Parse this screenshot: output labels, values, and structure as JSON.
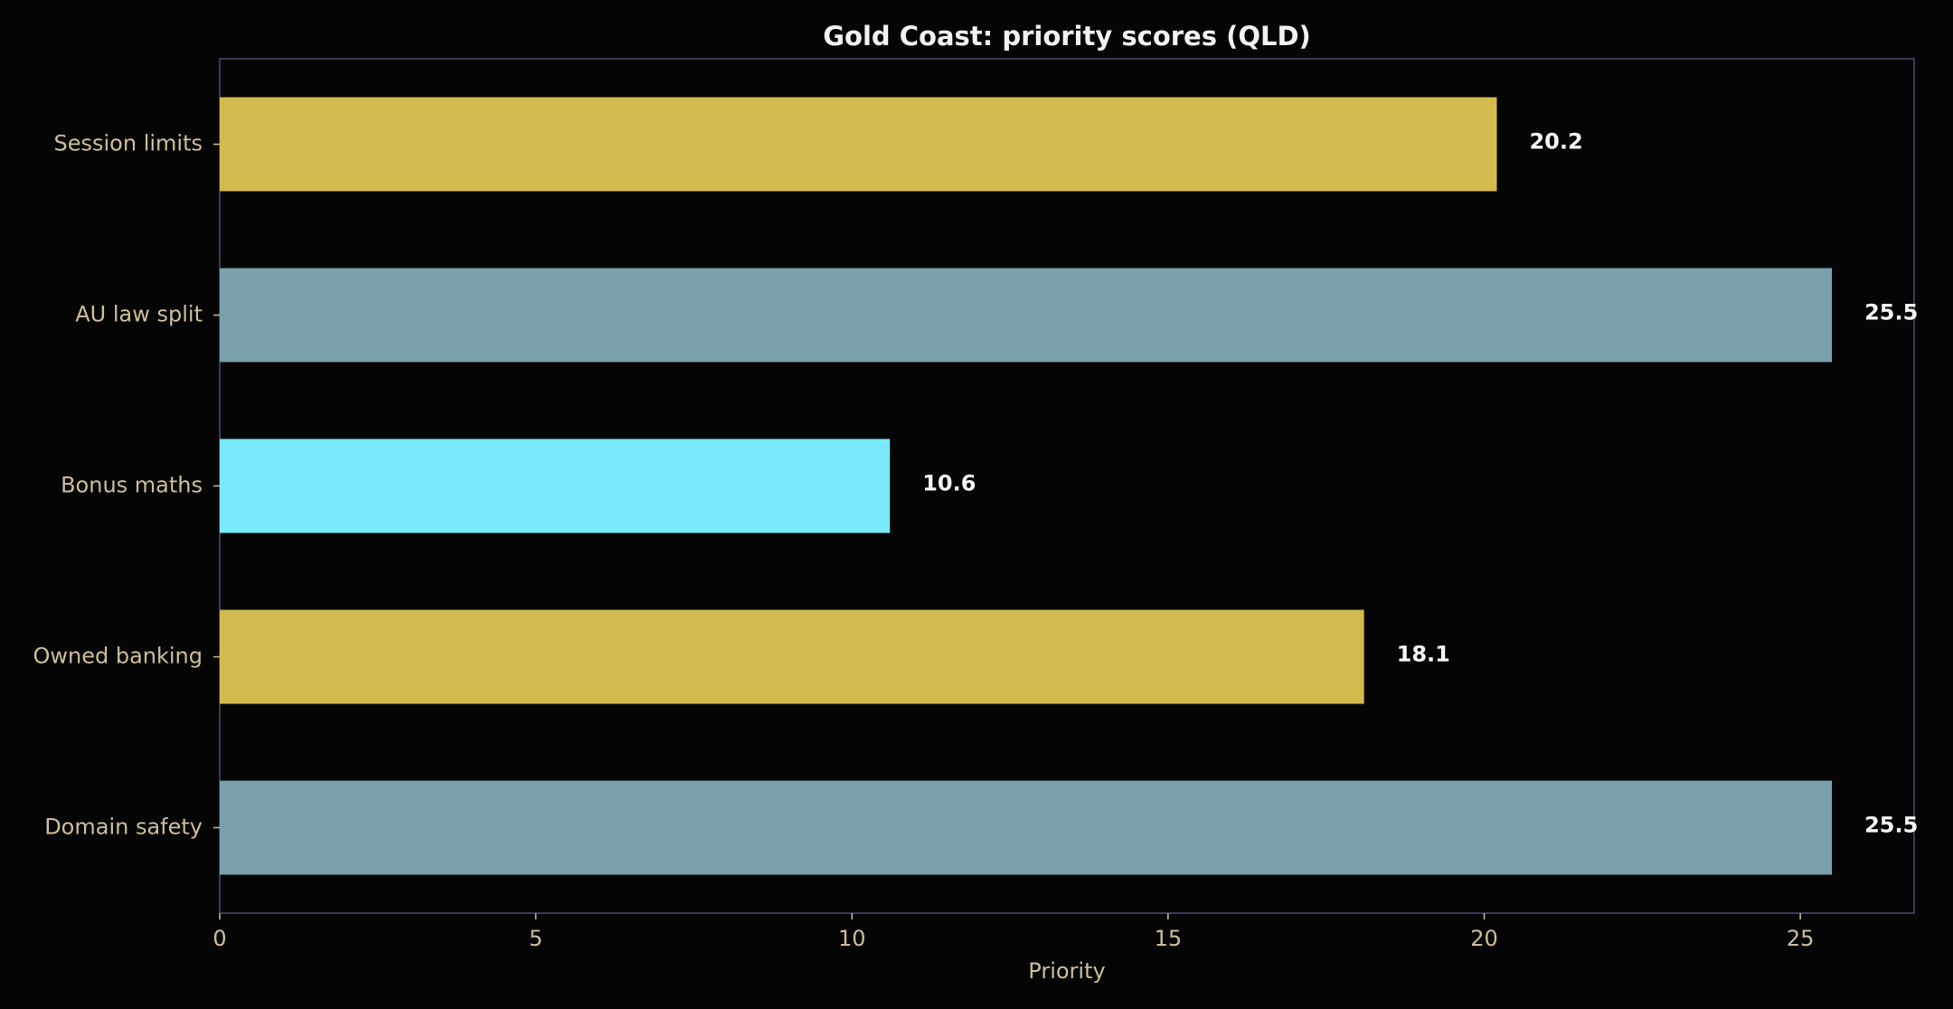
{
  "chart_data": {
    "type": "bar",
    "orientation": "horizontal",
    "title": "Gold Coast: priority scores (QLD)",
    "xlabel": "Priority",
    "ylabel": "",
    "categories": [
      "Session limits",
      "AU law split",
      "Bonus maths",
      "Owned banking",
      "Domain safety"
    ],
    "values": [
      20.2,
      25.5,
      10.6,
      18.1,
      25.5
    ],
    "value_labels": [
      "20.2",
      "25.5",
      "10.6",
      "18.1",
      "25.5"
    ],
    "bar_colors": [
      "#d4bb50",
      "#7aa1ab",
      "#7aebfd",
      "#d4bb50",
      "#7aa1ab"
    ],
    "xlim": [
      0,
      26.8
    ],
    "xticks": [
      0,
      5,
      10,
      15,
      20,
      25
    ],
    "xtick_labels": [
      "0",
      "5",
      "10",
      "15",
      "20",
      "25"
    ],
    "grid": false,
    "background": "#050505"
  }
}
